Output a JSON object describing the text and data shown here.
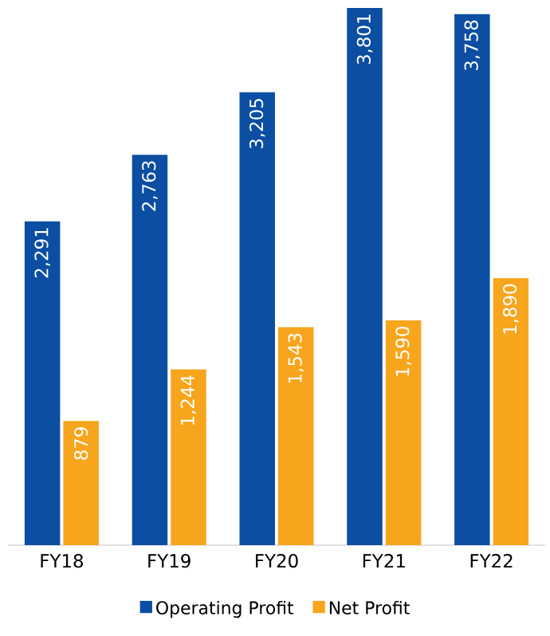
{
  "chart_data": {
    "type": "bar",
    "categories": [
      "FY18",
      "FY19",
      "FY20",
      "FY21",
      "FY22"
    ],
    "series": [
      {
        "name": "Operating Profit",
        "color": "#0b4ea2",
        "values": [
          2291,
          2763,
          3205,
          3801,
          3758
        ],
        "value_labels": [
          "2,291",
          "2,763",
          "3,205",
          "3,801",
          "3,758"
        ]
      },
      {
        "name": "Net Profit",
        "color": "#f7a51c",
        "values": [
          879,
          1244,
          1543,
          1590,
          1890
        ],
        "value_labels": [
          "879",
          "1,244",
          "1,543",
          "1,590",
          "1,890"
        ]
      }
    ],
    "legend": "bottom"
  }
}
